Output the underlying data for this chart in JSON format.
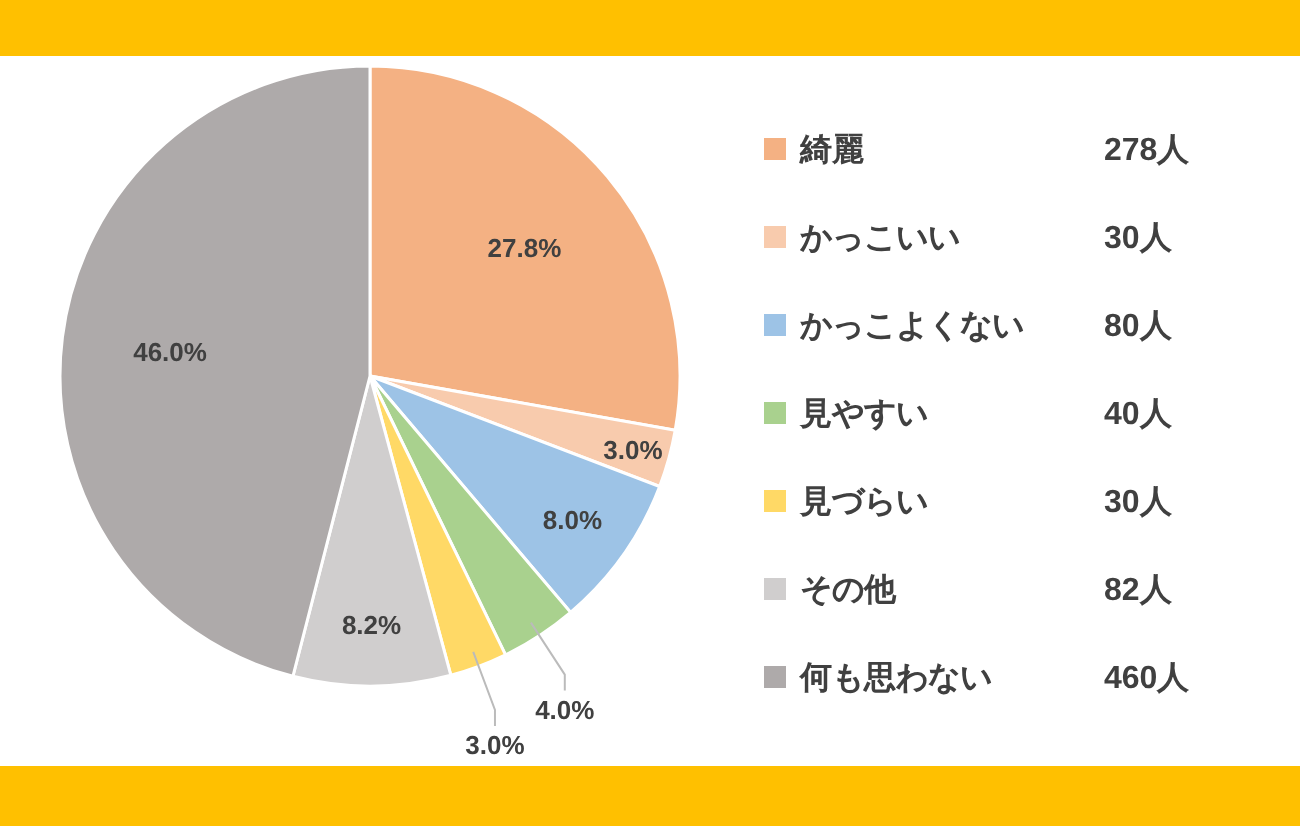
{
  "chart_data": {
    "type": "pie",
    "categories": [
      "綺麗",
      "かっこいい",
      "かっこよくない",
      "見やすい",
      "見づらい",
      "その他",
      "何も思わない"
    ],
    "values": [
      27.8,
      3.0,
      8.0,
      4.0,
      3.0,
      8.2,
      46.0
    ],
    "value_labels": [
      "27.8%",
      "3.0%",
      "8.0%",
      "4.0%",
      "3.0%",
      "8.2%",
      "46.0%"
    ],
    "colors": [
      "#f4b183",
      "#f8cbad",
      "#9dc3e6",
      "#a9d18e",
      "#ffd966",
      "#d0cece",
      "#aeaaaa"
    ],
    "annotations": [
      "278人",
      "30人",
      "80人",
      "40人",
      "30人",
      "82人",
      "460人"
    ],
    "legend": "right"
  }
}
